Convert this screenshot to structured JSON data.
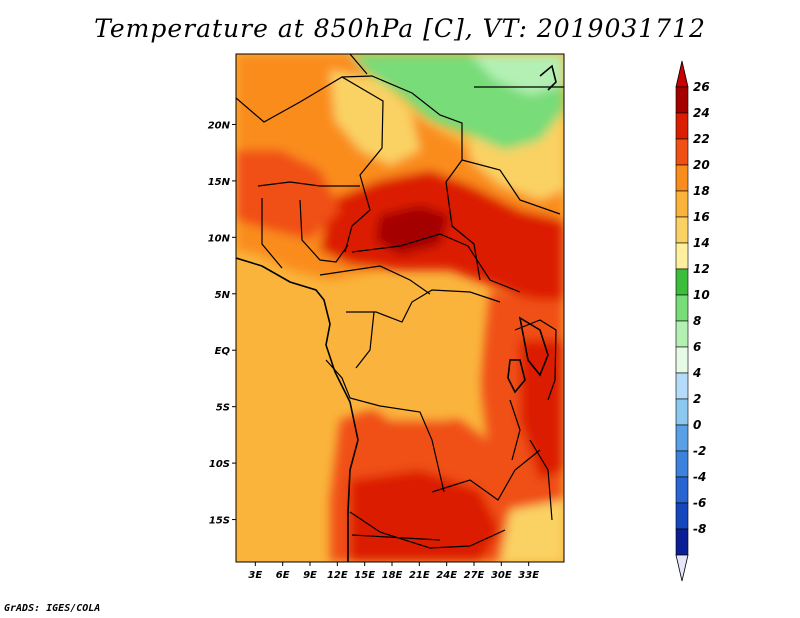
{
  "title": "Temperature at 850hPa [C], VT: 2019031712",
  "credit": "GrADS: IGES/COLA",
  "map": {
    "lon_range": [
      0,
      36
    ],
    "lat_range": [
      -20,
      25
    ],
    "lat_ticks": [
      {
        "value": 20,
        "label": "20N"
      },
      {
        "value": 15,
        "label": "15N"
      },
      {
        "value": 10,
        "label": "10N"
      },
      {
        "value": 5,
        "label": "5N"
      },
      {
        "value": 0,
        "label": "EQ"
      },
      {
        "value": -5,
        "label": "5S"
      },
      {
        "value": -10,
        "label": "10S"
      },
      {
        "value": -15,
        "label": "15S"
      }
    ],
    "lon_ticks": [
      {
        "value": 3,
        "label": "3E"
      },
      {
        "value": 6,
        "label": "6E"
      },
      {
        "value": 9,
        "label": "9E"
      },
      {
        "value": 12,
        "label": "12E"
      },
      {
        "value": 15,
        "label": "15E"
      },
      {
        "value": 18,
        "label": "18E"
      },
      {
        "value": 21,
        "label": "21E"
      },
      {
        "value": 24,
        "label": "24E"
      },
      {
        "value": 27,
        "label": "27E"
      },
      {
        "value": 30,
        "label": "30E"
      },
      {
        "value": 33,
        "label": "33E"
      }
    ]
  },
  "colorbar": {
    "levels": [
      {
        "label": "26",
        "color": "#a50000"
      },
      {
        "label": "24",
        "color": "#dc1e00"
      },
      {
        "label": "22",
        "color": "#f05014"
      },
      {
        "label": "20",
        "color": "#fa8c1e"
      },
      {
        "label": "18",
        "color": "#fab43c"
      },
      {
        "label": "16",
        "color": "#fad264"
      },
      {
        "label": "14",
        "color": "#fff0a0"
      },
      {
        "label": "12",
        "color": "#3cbe3c"
      },
      {
        "label": "10",
        "color": "#78dc78"
      },
      {
        "label": "8",
        "color": "#b4f0b4"
      },
      {
        "label": "6",
        "color": "#e6fae6"
      },
      {
        "label": "4",
        "color": "#b4dcfa"
      },
      {
        "label": "2",
        "color": "#8cc8f0"
      },
      {
        "label": "0",
        "color": "#5aa0e6"
      },
      {
        "label": "-2",
        "color": "#3c82dc"
      },
      {
        "label": "-4",
        "color": "#2864d2"
      },
      {
        "label": "-6",
        "color": "#1446be"
      },
      {
        "label": "-8",
        "color": "#0a1e96"
      }
    ],
    "top_color": "#c80000",
    "bottom_color": "#e6e6fa"
  }
}
